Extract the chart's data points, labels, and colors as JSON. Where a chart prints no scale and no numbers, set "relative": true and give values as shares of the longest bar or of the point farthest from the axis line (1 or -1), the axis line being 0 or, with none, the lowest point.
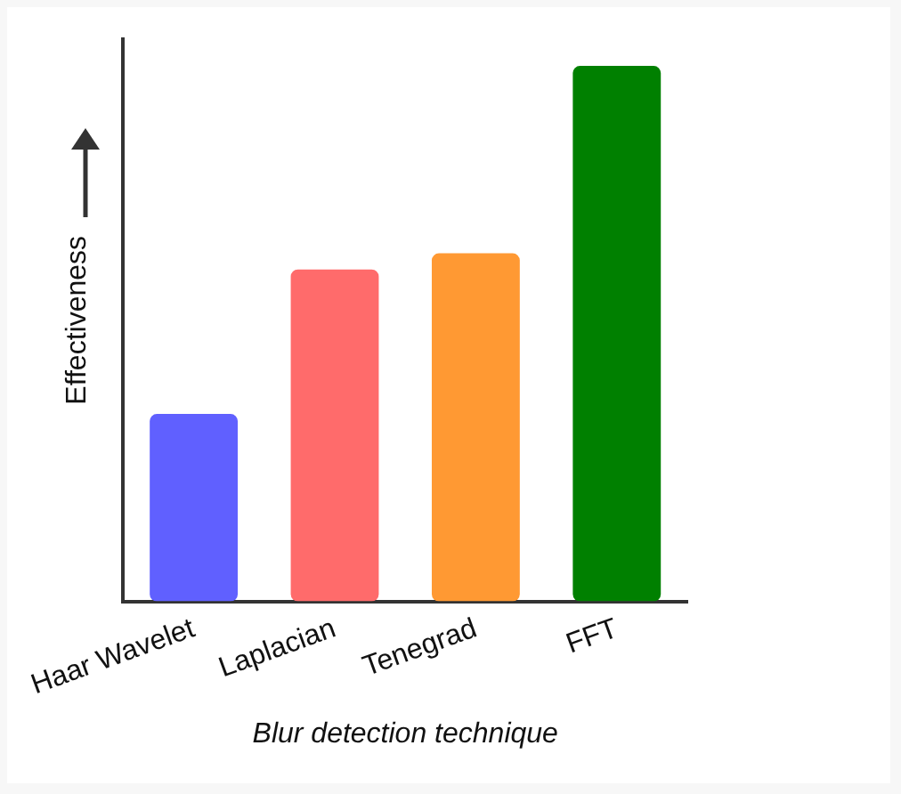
{
  "chart_data": {
    "type": "bar",
    "relative": true,
    "xlabel": "Blur detection technique",
    "ylabel": "Effectiveness",
    "categories": [
      "Haar Wavelet",
      "Laplacian",
      "Tenegrad",
      "FFT"
    ],
    "values": [
      0.35,
      0.62,
      0.65,
      1
    ],
    "colors": [
      "#6060ff",
      "#ff6b6b",
      "#ff9933",
      "#008000"
    ],
    "grid": false,
    "legend": false
  }
}
